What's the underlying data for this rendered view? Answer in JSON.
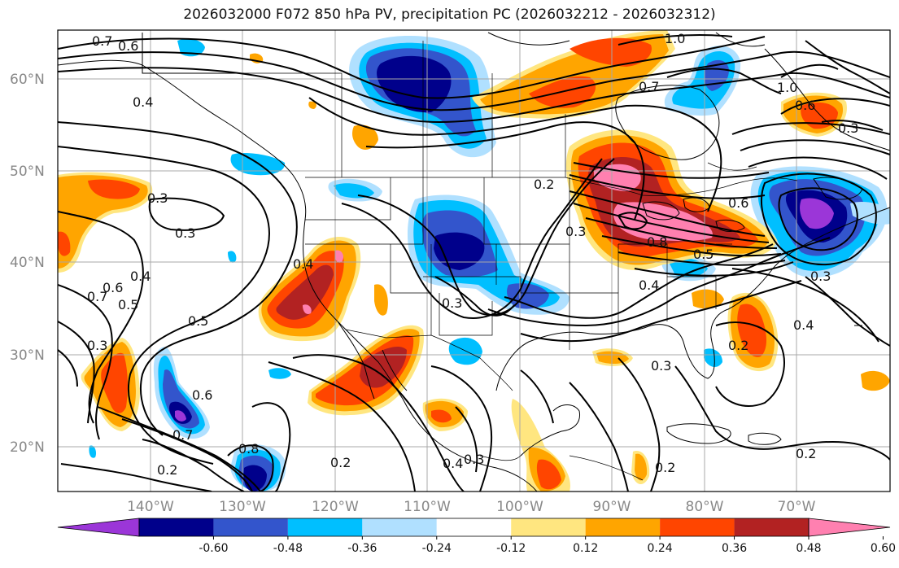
{
  "title": "2026032000 F072 850 hPa PV, precipitation PC (2026032212 - 2026032312)",
  "map": {
    "lat_labels": [
      "60°N",
      "50°N",
      "40°N",
      "30°N",
      "20°N"
    ],
    "lon_labels": [
      "140°W",
      "130°W",
      "120°W",
      "110°W",
      "100°W",
      "90°W",
      "80°W",
      "70°W"
    ],
    "contour_labels": [
      "0.7",
      "0.6",
      "0.4",
      "0.3",
      "0.3",
      "0.6",
      "0.5",
      "0.7",
      "0.4",
      "0.3",
      "0.5",
      "0.6",
      "0.7",
      "0.8",
      "0.2",
      "0.2",
      "0.4",
      "0.3",
      "0.3",
      "0.2",
      "0.3",
      "0.5",
      "0.8",
      "0.4",
      "1.0",
      "0.7",
      "0.6",
      "1.0",
      "0.3",
      "0.6",
      "0.4",
      "0.3",
      "0.2",
      "0.3",
      "0.2",
      "0.2",
      "0.4"
    ],
    "colors": {
      "pc_neg_lt_060": "#9b36d8",
      "pc_neg_048_060": "#00008b",
      "pc_neg_036_048": "#3355cc",
      "pc_neg_024_036": "#00bfff",
      "pc_neg_012_024": "#b0e0ff",
      "pc_neutral": "#ffffff",
      "pc_pos_012_024": "#ffe680",
      "pc_pos_024_036": "#ffa500",
      "pc_pos_036_048": "#ff4500",
      "pc_pos_048_060": "#b22222",
      "pc_pos_gt_060": "#ff80b0"
    }
  },
  "colorbar": {
    "labels": [
      "-0.60",
      "-0.48",
      "-0.36",
      "-0.24",
      "-0.12",
      "0.12",
      "0.24",
      "0.36",
      "0.48",
      "0.60"
    ],
    "colors": [
      "#9b36d8",
      "#00008b",
      "#3355cc",
      "#00bfff",
      "#b0e0ff",
      "#ffffff",
      "#ffe680",
      "#ffa500",
      "#ff4500",
      "#b22222",
      "#ff80b0"
    ]
  }
}
